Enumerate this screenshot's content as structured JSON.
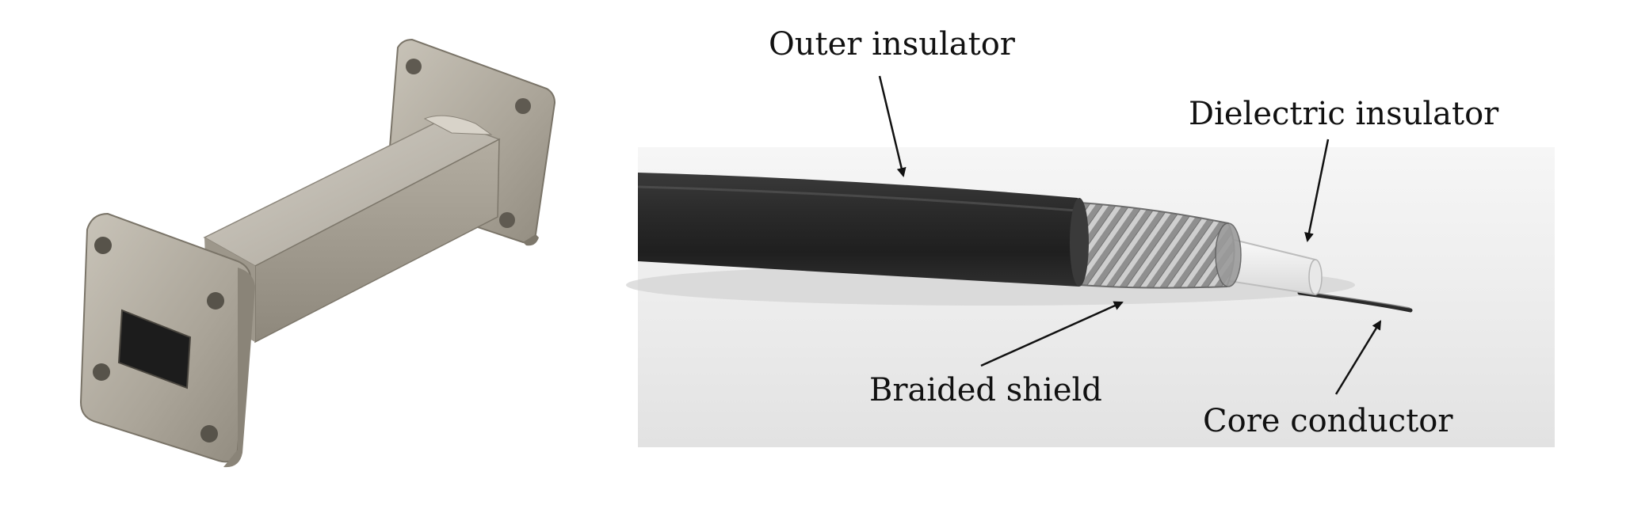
{
  "labels": {
    "outer_insulator": "Outer insulator",
    "dielectric_insulator": "Dielectric insulator",
    "braided_shield": "Braided shield",
    "core_conductor": "Core conductor"
  },
  "colors": {
    "background": "#ffffff",
    "photo_backdrop": "#efefef",
    "cable_jacket": "#262626",
    "metal": "#b5b0a5",
    "label_text": "#111111"
  }
}
